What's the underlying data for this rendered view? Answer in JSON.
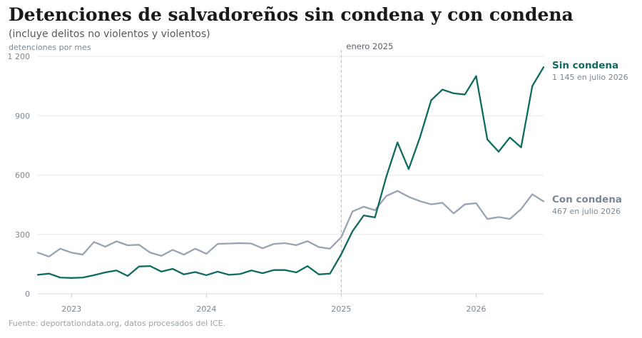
{
  "title": "Detenciones de salvadoreños sin condena y con condena",
  "subtitle": "(incluye delitos no violentos y violentos)",
  "source": "Fuente: deportationdata.org, datos procesados del ICE.",
  "chart_data": {
    "type": "line",
    "ylabel": "detenciones por mes",
    "ylim": [
      0,
      1200
    ],
    "yticks": [
      0,
      300,
      600,
      900,
      1200
    ],
    "ytick_labels": [
      "0",
      "300",
      "600",
      "900",
      "1 200"
    ],
    "xticks": [
      "2023",
      "2024",
      "2025",
      "2026"
    ],
    "x_start": "2022-10",
    "x_end": "2026-07",
    "annotation": {
      "x": "2025-01",
      "label": "enero 2025"
    },
    "grid": true,
    "legend": "inline-right",
    "x": [
      "2022-10",
      "2022-11",
      "2022-12",
      "2023-01",
      "2023-02",
      "2023-03",
      "2023-04",
      "2023-05",
      "2023-06",
      "2023-07",
      "2023-08",
      "2023-09",
      "2023-10",
      "2023-11",
      "2023-12",
      "2024-01",
      "2024-02",
      "2024-03",
      "2024-04",
      "2024-05",
      "2024-06",
      "2024-07",
      "2024-08",
      "2024-09",
      "2024-10",
      "2024-11",
      "2024-12",
      "2025-01",
      "2025-02",
      "2025-03",
      "2025-04",
      "2025-05",
      "2025-06",
      "2025-07",
      "2025-08",
      "2025-09",
      "2025-10",
      "2025-11",
      "2025-12",
      "2026-01",
      "2026-02",
      "2026-03",
      "2026-04",
      "2026-05",
      "2026-06",
      "2026-07"
    ],
    "series": [
      {
        "name": "Sin condena",
        "end_label": "1 145 en julio 2026",
        "color": "#0f6b5e",
        "values": [
          96,
          102,
          82,
          80,
          82,
          94,
          108,
          118,
          90,
          138,
          140,
          112,
          126,
          98,
          110,
          94,
          112,
          96,
          100,
          118,
          104,
          120,
          120,
          108,
          140,
          98,
          102,
          200,
          316,
          396,
          386,
          590,
          765,
          630,
          790,
          978,
          1032,
          1013,
          1007,
          1100,
          780,
          718,
          790,
          740,
          1050,
          1145
        ]
      },
      {
        "name": "Con condena",
        "end_label": "467 en julio 2026",
        "color": "#98a3b3",
        "label_color": "#7a8595",
        "values": [
          208,
          188,
          228,
          208,
          198,
          262,
          238,
          265,
          245,
          248,
          208,
          192,
          222,
          198,
          228,
          202,
          252,
          254,
          256,
          254,
          230,
          252,
          256,
          246,
          266,
          236,
          228,
          286,
          416,
          440,
          422,
          494,
          520,
          490,
          468,
          452,
          460,
          406,
          452,
          458,
          378,
          388,
          378,
          428,
          503,
          467
        ]
      }
    ]
  }
}
